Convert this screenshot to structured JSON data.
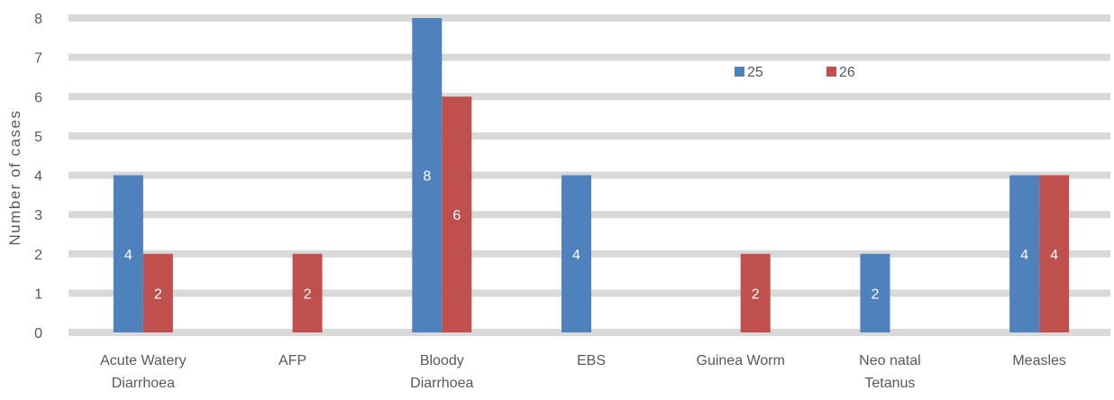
{
  "chart_data": {
    "type": "bar",
    "title": "",
    "xlabel": "",
    "ylabel": "Number of cases",
    "ylim": [
      0,
      8
    ],
    "yticks": [
      "0",
      "1",
      "2",
      "3",
      "4",
      "5",
      "6",
      "7",
      "8"
    ],
    "grid": true,
    "legend_position": "top-right",
    "categories": [
      [
        "Acute Watery",
        "Diarrhoea"
      ],
      [
        "AFP"
      ],
      [
        "Bloody",
        "Diarrhoea"
      ],
      [
        "EBS"
      ],
      [
        "Guinea Worm"
      ],
      [
        "Neo natal",
        "Tetanus"
      ],
      [
        "Measles"
      ]
    ],
    "series": [
      {
        "name": "25",
        "color": "#4f81bd",
        "values": [
          4,
          0,
          8,
          4,
          0,
          2,
          4
        ],
        "labels": [
          "4",
          "",
          "8",
          "4",
          "",
          "2",
          "4"
        ]
      },
      {
        "name": "26",
        "color": "#c0504d",
        "values": [
          2,
          2,
          6,
          0,
          2,
          0,
          4
        ],
        "labels": [
          "2",
          "2",
          "6",
          "",
          "2",
          "",
          "4"
        ]
      }
    ],
    "gridline_color": "#d9d9d9"
  }
}
